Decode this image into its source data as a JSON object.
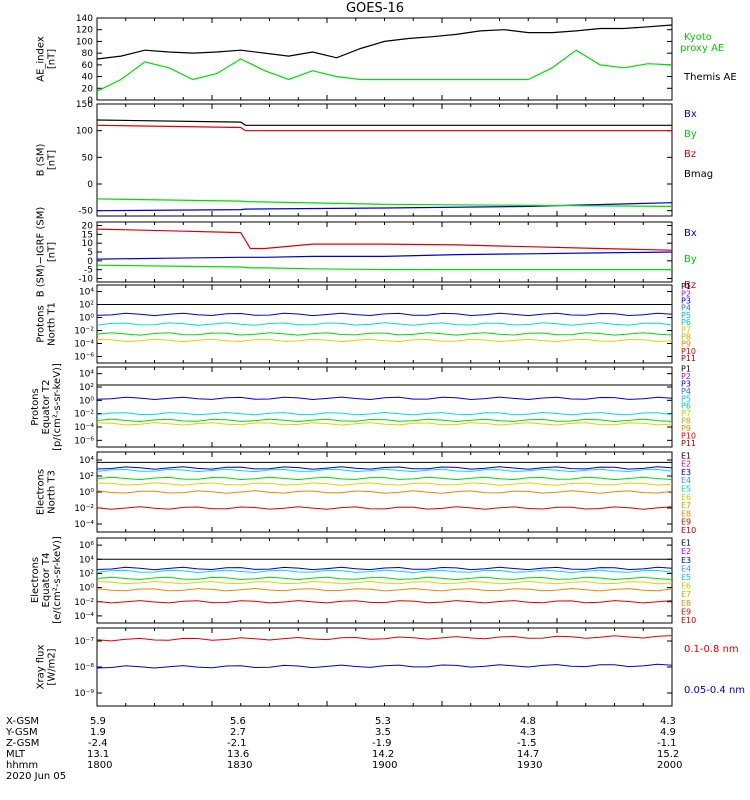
{
  "title": "GOES-16",
  "date": "2020 Jun 05",
  "ephemeris": {
    "labels": [
      "X-GSM",
      "Y-GSM",
      "Z-GSM",
      "MLT",
      "hhmm"
    ],
    "columns": [
      {
        "x": "5.9",
        "y": "1.9",
        "z": "-2.4",
        "mlt": "13.1",
        "hhmm": "1800"
      },
      {
        "x": "5.6",
        "y": "2.7",
        "z": "-2.1",
        "mlt": "13.6",
        "hhmm": "1830"
      },
      {
        "x": "5.3",
        "y": "3.5",
        "z": "-1.9",
        "mlt": "14.2",
        "hhmm": "1900"
      },
      {
        "x": "4.8",
        "y": "4.3",
        "z": "-1.5",
        "mlt": "14.7",
        "hhmm": "1930"
      },
      {
        "x": "4.3",
        "y": "4.9",
        "z": "-1.1",
        "mlt": "15.2",
        "hhmm": "2000"
      }
    ]
  },
  "colors": {
    "black": "#000000",
    "green": "#00dd00",
    "red": "#dd0000",
    "blue": "#0000cc",
    "cyan": "#00dddd",
    "yellow": "#eecc00",
    "orange": "#ee8800"
  },
  "chart_data": [
    {
      "type": "line",
      "ylabel": "AE_index\n[nT]",
      "ylim": [
        0,
        140
      ],
      "yticks": [
        "0",
        "20",
        "40",
        "60",
        "80",
        "100",
        "120",
        "140"
      ],
      "x": [
        0,
        5,
        10,
        15,
        20,
        25,
        30,
        35,
        40,
        45,
        50,
        55,
        60,
        65,
        70,
        75,
        80,
        85,
        90,
        95,
        100,
        105,
        110,
        115,
        120
      ],
      "series": [
        {
          "name": "Kyoto proxy AE",
          "color": "#00dd00",
          "values": [
            15,
            35,
            65,
            55,
            35,
            45,
            70,
            50,
            35,
            50,
            40,
            35,
            35,
            35,
            35,
            35,
            35,
            35,
            35,
            55,
            85,
            60,
            55,
            62,
            60
          ]
        },
        {
          "name": "Themis AE",
          "color": "#000000",
          "values": [
            70,
            75,
            85,
            82,
            80,
            82,
            85,
            80,
            75,
            82,
            72,
            88,
            100,
            105,
            108,
            112,
            118,
            120,
            115,
            115,
            118,
            122,
            122,
            125,
            128
          ]
        }
      ]
    },
    {
      "type": "line",
      "ylabel": "B (SM)\n[nT]",
      "ylim": [
        -60,
        150
      ],
      "yticks": [
        "150",
        "100",
        "50",
        "0",
        "-50"
      ],
      "x": [
        0,
        30,
        31,
        60,
        90,
        120
      ],
      "series": [
        {
          "name": "Bx",
          "color": "#0000cc",
          "values": [
            -50,
            -48,
            -47,
            -45,
            -42,
            -35
          ]
        },
        {
          "name": "By",
          "color": "#00dd00",
          "values": [
            -28,
            -32,
            -33,
            -38,
            -40,
            -42
          ]
        },
        {
          "name": "Bz",
          "color": "#dd0000",
          "values": [
            110,
            106,
            100,
            100,
            100,
            100
          ]
        },
        {
          "name": "Bmag",
          "color": "#000000",
          "values": [
            120,
            116,
            110,
            110,
            110,
            110
          ]
        }
      ]
    },
    {
      "type": "line",
      "ylabel": "B (SM)−IGRF (SM)\n[nT]",
      "ylim": [
        -12,
        22
      ],
      "yticks": [
        "20",
        "15",
        "10",
        "5",
        "0",
        "-5",
        "-10"
      ],
      "x": [
        0,
        15,
        30,
        32,
        35,
        45,
        60,
        75,
        90,
        105,
        120
      ],
      "series": [
        {
          "name": "Bx",
          "color": "#0000cc",
          "values": [
            1,
            1.5,
            2,
            2,
            2,
            2.5,
            2.5,
            3.5,
            4,
            4.5,
            5
          ]
        },
        {
          "name": "By",
          "color": "#00dd00",
          "values": [
            -2.5,
            -3,
            -3.5,
            -4,
            -4,
            -4.5,
            -5,
            -5,
            -5,
            -5,
            -5
          ]
        },
        {
          "name": "Bz",
          "color": "#dd0000",
          "values": [
            18,
            17,
            16,
            7,
            7,
            9.5,
            9.5,
            9,
            8,
            7,
            6
          ]
        }
      ]
    },
    {
      "type": "line",
      "ylabel": "Protons\nNorth T1",
      "scale": "log",
      "yticks": [
        "10⁴",
        "10²",
        "10⁰",
        "10⁻²",
        "10⁻⁴",
        "10⁻⁶"
      ],
      "legend": [
        "P1",
        "P2",
        "P3",
        "P4",
        "P5",
        "P6",
        "P7",
        "P8",
        "P9",
        "P10",
        "P11"
      ],
      "series": [
        {
          "name": "P1",
          "color": "#000000",
          "values": [
            100,
            100
          ]
        },
        {
          "name": "P3",
          "color": "#0000cc",
          "values": [
            3,
            3
          ]
        },
        {
          "name": "P6",
          "color": "#00dddd",
          "values": [
            0.1,
            0.1
          ]
        },
        {
          "name": "P7",
          "color": "#00dd00",
          "values": [
            0.003,
            0.003
          ]
        },
        {
          "name": "P9",
          "color": "#eecc00",
          "values": [
            0.0003,
            0.0003
          ]
        }
      ]
    },
    {
      "type": "line",
      "ylabel": "Protons\nEquator T2\n[p/(cm²-s-sr-keV)]",
      "scale": "log",
      "yticks": [
        "10⁴",
        "10²",
        "10⁰",
        "10⁻²",
        "10⁻⁴",
        "10⁻⁶"
      ],
      "legend": [
        "P1",
        "P2",
        "P3",
        "P4",
        "P5",
        "P6",
        "P7",
        "P8",
        "P9",
        "P10",
        "P11"
      ],
      "series": [
        {
          "name": "P1",
          "color": "#000000",
          "values": [
            200,
            200
          ]
        },
        {
          "name": "P3",
          "color": "#0000cc",
          "values": [
            2,
            2
          ]
        },
        {
          "name": "P6",
          "color": "#00dddd",
          "values": [
            0.01,
            0.01
          ]
        },
        {
          "name": "P7",
          "color": "#00dd00",
          "values": [
            0.001,
            0.001
          ]
        },
        {
          "name": "P9",
          "color": "#eecc00",
          "values": [
            0.0003,
            0.0003
          ]
        }
      ]
    },
    {
      "type": "line",
      "ylabel": "Electrons\nNorth T3",
      "scale": "log",
      "yticks": [
        "10⁴",
        "10²",
        "10⁰",
        "10⁻²",
        "10⁻⁴"
      ],
      "legend": [
        "E1",
        "E2",
        "E3",
        "E4",
        "E5",
        "E6",
        "E7",
        "E8",
        "E9",
        "E10"
      ],
      "series": [
        {
          "name": "E1",
          "color": "#000000",
          "values": [
            5000,
            5000
          ]
        },
        {
          "name": "E3",
          "color": "#0000cc",
          "values": [
            1000,
            1000
          ]
        },
        {
          "name": "E4",
          "color": "#00dddd",
          "values": [
            500,
            500
          ]
        },
        {
          "name": "E5",
          "color": "#00dd00",
          "values": [
            50,
            50
          ]
        },
        {
          "name": "E6",
          "color": "#eecc00",
          "values": [
            10,
            10
          ]
        },
        {
          "name": "E7",
          "color": "#ee8800",
          "values": [
            1,
            1
          ]
        },
        {
          "name": "E9",
          "color": "#dd0000",
          "values": [
            0.01,
            0.01
          ]
        }
      ]
    },
    {
      "type": "line",
      "ylabel": "Electrons\nEquator T4\n[e/(cm²-s-sr-keV)]",
      "scale": "log",
      "yticks": [
        "10⁶",
        "10⁴",
        "10²",
        "10⁰",
        "10⁻²",
        "10⁻⁴"
      ],
      "legend": [
        "E1",
        "E2",
        "E3",
        "E4",
        "E5",
        "E6",
        "E7",
        "E8",
        "E9",
        "E10"
      ],
      "series": [
        {
          "name": "E1",
          "color": "#000000",
          "values": [
            10000,
            10000
          ]
        },
        {
          "name": "E3",
          "color": "#0000cc",
          "values": [
            500,
            500
          ]
        },
        {
          "name": "E4",
          "color": "#00dddd",
          "values": [
            200,
            200
          ]
        },
        {
          "name": "E5",
          "color": "#00dd00",
          "values": [
            20,
            20
          ]
        },
        {
          "name": "E6",
          "color": "#eecc00",
          "values": [
            5,
            5
          ]
        },
        {
          "name": "E7",
          "color": "#ee8800",
          "values": [
            0.5,
            0.5
          ]
        },
        {
          "name": "E9",
          "color": "#dd0000",
          "values": [
            0.01,
            0.01
          ]
        }
      ]
    },
    {
      "type": "line",
      "ylabel": "Xray flux\n[W/m2]",
      "scale": "log",
      "yticks": [
        "10⁻⁷",
        "10⁻⁸",
        "10⁻⁹"
      ],
      "legend": [
        "0.1-0.8 nm",
        "0.05-0.4 nm"
      ],
      "series": [
        {
          "name": "0.1-0.8 nm",
          "color": "#dd0000",
          "values": [
            5e-08,
            6e-08
          ]
        },
        {
          "name": "0.05-0.4 nm",
          "color": "#0000cc",
          "values": [
            1e-08,
            1.1e-08
          ]
        }
      ]
    }
  ]
}
